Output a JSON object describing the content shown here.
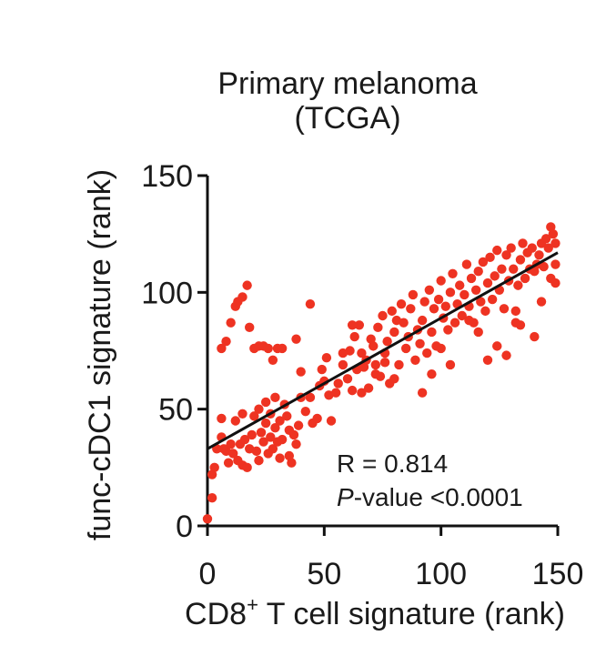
{
  "chart_data": {
    "type": "scatter",
    "title_line1": "Primary melanoma",
    "title_line2": "(TCGA)",
    "xlabel_prefix": "CD8",
    "xlabel_superscript": "+",
    "xlabel_suffix": " T cell signature (rank)",
    "ylabel": "func-cDC1 signature (rank)",
    "xlim": [
      0,
      150
    ],
    "ylim": [
      0,
      150
    ],
    "xticks": [
      "0",
      "50",
      "100",
      "150"
    ],
    "yticks": [
      "0",
      "50",
      "100",
      "150"
    ],
    "grid": false,
    "annotation_r": "R = 0.814",
    "annotation_p_italic": "P",
    "annotation_p_rest": "-value  <0.0001",
    "point_color": "#ee3322",
    "line_color": "#111111",
    "regression": {
      "x1": 0,
      "y1": 33,
      "x2": 150,
      "y2": 117
    },
    "points": [
      [
        0,
        3
      ],
      [
        2,
        12
      ],
      [
        2,
        22
      ],
      [
        3,
        25
      ],
      [
        4,
        33
      ],
      [
        6,
        38
      ],
      [
        6,
        46
      ],
      [
        7,
        33
      ],
      [
        8,
        32
      ],
      [
        9,
        27
      ],
      [
        10,
        35
      ],
      [
        11,
        31
      ],
      [
        12,
        45
      ],
      [
        13,
        28
      ],
      [
        14,
        35
      ],
      [
        15,
        26
      ],
      [
        15,
        48
      ],
      [
        16,
        37
      ],
      [
        17,
        25
      ],
      [
        18,
        33
      ],
      [
        19,
        39
      ],
      [
        20,
        47
      ],
      [
        21,
        32
      ],
      [
        22,
        50
      ],
      [
        22,
        28
      ],
      [
        23,
        40
      ],
      [
        24,
        36
      ],
      [
        25,
        53
      ],
      [
        25,
        44
      ],
      [
        26,
        31
      ],
      [
        27,
        38
      ],
      [
        27,
        48
      ],
      [
        28,
        33
      ],
      [
        29,
        42
      ],
      [
        29,
        55
      ],
      [
        30,
        36
      ],
      [
        31,
        29
      ],
      [
        31,
        45
      ],
      [
        32,
        37
      ],
      [
        33,
        52
      ],
      [
        34,
        47
      ],
      [
        35,
        30
      ],
      [
        35,
        41
      ],
      [
        36,
        27
      ],
      [
        37,
        39
      ],
      [
        38,
        35
      ],
      [
        39,
        43
      ],
      [
        40,
        55
      ],
      [
        42,
        49
      ],
      [
        44,
        55
      ],
      [
        45,
        44
      ],
      [
        47,
        46
      ],
      [
        48,
        60
      ],
      [
        49,
        67
      ],
      [
        50,
        62
      ],
      [
        51,
        72
      ],
      [
        52,
        56
      ],
      [
        53,
        45
      ],
      [
        55,
        57
      ],
      [
        56,
        61
      ],
      [
        58,
        69
      ],
      [
        60,
        63
      ],
      [
        61,
        75
      ],
      [
        62,
        58
      ],
      [
        63,
        81
      ],
      [
        64,
        67
      ],
      [
        65,
        86
      ],
      [
        66,
        74
      ],
      [
        67,
        68
      ],
      [
        68,
        71
      ],
      [
        69,
        59
      ],
      [
        70,
        80
      ],
      [
        71,
        77
      ],
      [
        72,
        69
      ],
      [
        73,
        85
      ],
      [
        74,
        64
      ],
      [
        75,
        90
      ],
      [
        76,
        74
      ],
      [
        77,
        79
      ],
      [
        78,
        61
      ],
      [
        79,
        92
      ],
      [
        80,
        83
      ],
      [
        81,
        88
      ],
      [
        82,
        69
      ],
      [
        83,
        95
      ],
      [
        84,
        87
      ],
      [
        85,
        76
      ],
      [
        86,
        81
      ],
      [
        87,
        93
      ],
      [
        88,
        99
      ],
      [
        89,
        71
      ],
      [
        90,
        84
      ],
      [
        91,
        78
      ],
      [
        92,
        88
      ],
      [
        93,
        96
      ],
      [
        94,
        74
      ],
      [
        95,
        101
      ],
      [
        96,
        83
      ],
      [
        97,
        93
      ],
      [
        98,
        77
      ],
      [
        99,
        97
      ],
      [
        100,
        105
      ],
      [
        101,
        89
      ],
      [
        102,
        94
      ],
      [
        103,
        84
      ],
      [
        104,
        100
      ],
      [
        105,
        108
      ],
      [
        106,
        87
      ],
      [
        107,
        95
      ],
      [
        108,
        103
      ],
      [
        109,
        90
      ],
      [
        110,
        99
      ],
      [
        111,
        112
      ],
      [
        112,
        94
      ],
      [
        113,
        106
      ],
      [
        114,
        87
      ],
      [
        115,
        101
      ],
      [
        116,
        109
      ],
      [
        117,
        96
      ],
      [
        118,
        113
      ],
      [
        119,
        92
      ],
      [
        120,
        104
      ],
      [
        121,
        115
      ],
      [
        122,
        97
      ],
      [
        123,
        107
      ],
      [
        124,
        118
      ],
      [
        125,
        101
      ],
      [
        126,
        110
      ],
      [
        127,
        93
      ],
      [
        128,
        116
      ],
      [
        129,
        105
      ],
      [
        130,
        119
      ],
      [
        131,
        110
      ],
      [
        132,
        87
      ],
      [
        133,
        103
      ],
      [
        134,
        114
      ],
      [
        135,
        121
      ],
      [
        136,
        106
      ],
      [
        137,
        117
      ],
      [
        138,
        110
      ],
      [
        139,
        119
      ],
      [
        140,
        109
      ],
      [
        141,
        112
      ],
      [
        142,
        116
      ],
      [
        143,
        121
      ],
      [
        144,
        111
      ],
      [
        145,
        123
      ],
      [
        146,
        119
      ],
      [
        147,
        128
      ],
      [
        148,
        125
      ],
      [
        149,
        121
      ],
      [
        6,
        76
      ],
      [
        8,
        79
      ],
      [
        10,
        87
      ],
      [
        12,
        94
      ],
      [
        13,
        96
      ],
      [
        15,
        98
      ],
      [
        17,
        103
      ],
      [
        18,
        85
      ],
      [
        20,
        76
      ],
      [
        22,
        77
      ],
      [
        24,
        77
      ],
      [
        26,
        76
      ],
      [
        28,
        71
      ],
      [
        30,
        76
      ],
      [
        32,
        76
      ],
      [
        44,
        95
      ],
      [
        38,
        80
      ],
      [
        40,
        66
      ],
      [
        58,
        74
      ],
      [
        62,
        86
      ],
      [
        66,
        57
      ],
      [
        72,
        65
      ],
      [
        76,
        70
      ],
      [
        80,
        63
      ],
      [
        92,
        57
      ],
      [
        96,
        65
      ],
      [
        100,
        76
      ],
      [
        104,
        69
      ],
      [
        112,
        88
      ],
      [
        116,
        83
      ],
      [
        120,
        71
      ],
      [
        124,
        77
      ],
      [
        128,
        73
      ],
      [
        132,
        92
      ],
      [
        134,
        86
      ],
      [
        140,
        81
      ],
      [
        143,
        96
      ],
      [
        147,
        106
      ],
      [
        149,
        112
      ],
      [
        149,
        104
      ]
    ]
  }
}
